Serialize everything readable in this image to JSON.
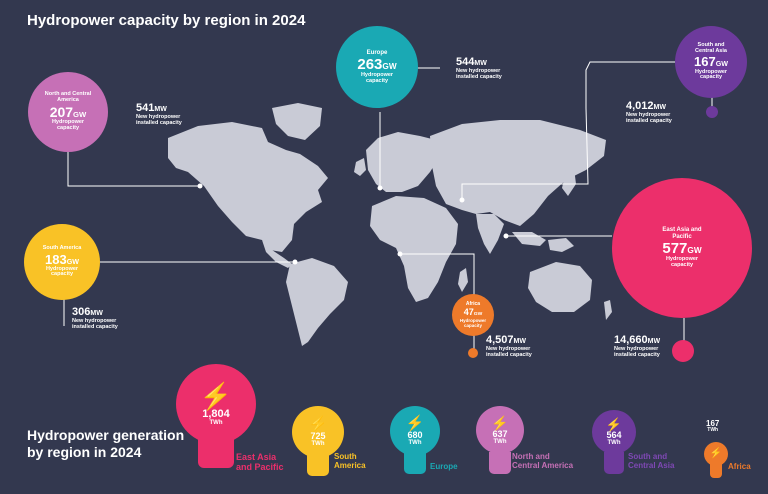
{
  "header": {
    "title": "Hydropower capacity by region in 2024"
  },
  "capacity_unit": "GW",
  "new_unit": "MW",
  "capacity_label": "Hydropower capacity",
  "new_label": "New hydropower installed capacity",
  "regions": {
    "north_central_america": {
      "name": "North and Central America",
      "capacity": "207",
      "new": "541",
      "color": "#c670b6"
    },
    "south_america": {
      "name": "South America",
      "capacity": "183",
      "new": "306",
      "color": "#f9c226"
    },
    "europe": {
      "name": "Europe",
      "capacity": "263",
      "new": "544",
      "color": "#1aa9b4"
    },
    "south_central_asia": {
      "name": "South and Central Asia",
      "capacity": "167",
      "new": "4,012",
      "color": "#6d3a9c"
    },
    "east_asia_pacific": {
      "name": "East Asia and Pacific",
      "capacity": "577",
      "new": "14,660",
      "color": "#ec2f6b"
    },
    "africa": {
      "name": "Africa",
      "capacity": "47",
      "new": "4,507",
      "color": "#ee7a2a"
    }
  },
  "generation": {
    "title_line1": "Hydropower generation",
    "title_line2": "by region in 2024",
    "unit": "TWh",
    "items": [
      {
        "value": "1,804",
        "label_line1": "East Asia",
        "label_line2": "and Pacific",
        "color": "#ec2f6b"
      },
      {
        "value": "725",
        "label_line1": "South",
        "label_line2": "America",
        "color": "#f9c226"
      },
      {
        "value": "680",
        "label_line1": "Europe",
        "label_line2": "",
        "color": "#1aa9b4"
      },
      {
        "value": "637",
        "label_line1": "North and",
        "label_line2": "Central America",
        "color": "#c670b6"
      },
      {
        "value": "564",
        "label_line1": "South and",
        "label_line2": "Central Asia",
        "color": "#6d3a9c"
      },
      {
        "value": "167",
        "label_line1": "Africa",
        "label_line2": "",
        "color": "#ee7a2a"
      }
    ]
  },
  "icons": {
    "bulb": "lightning-bolt-icon",
    "map": "world-map"
  }
}
